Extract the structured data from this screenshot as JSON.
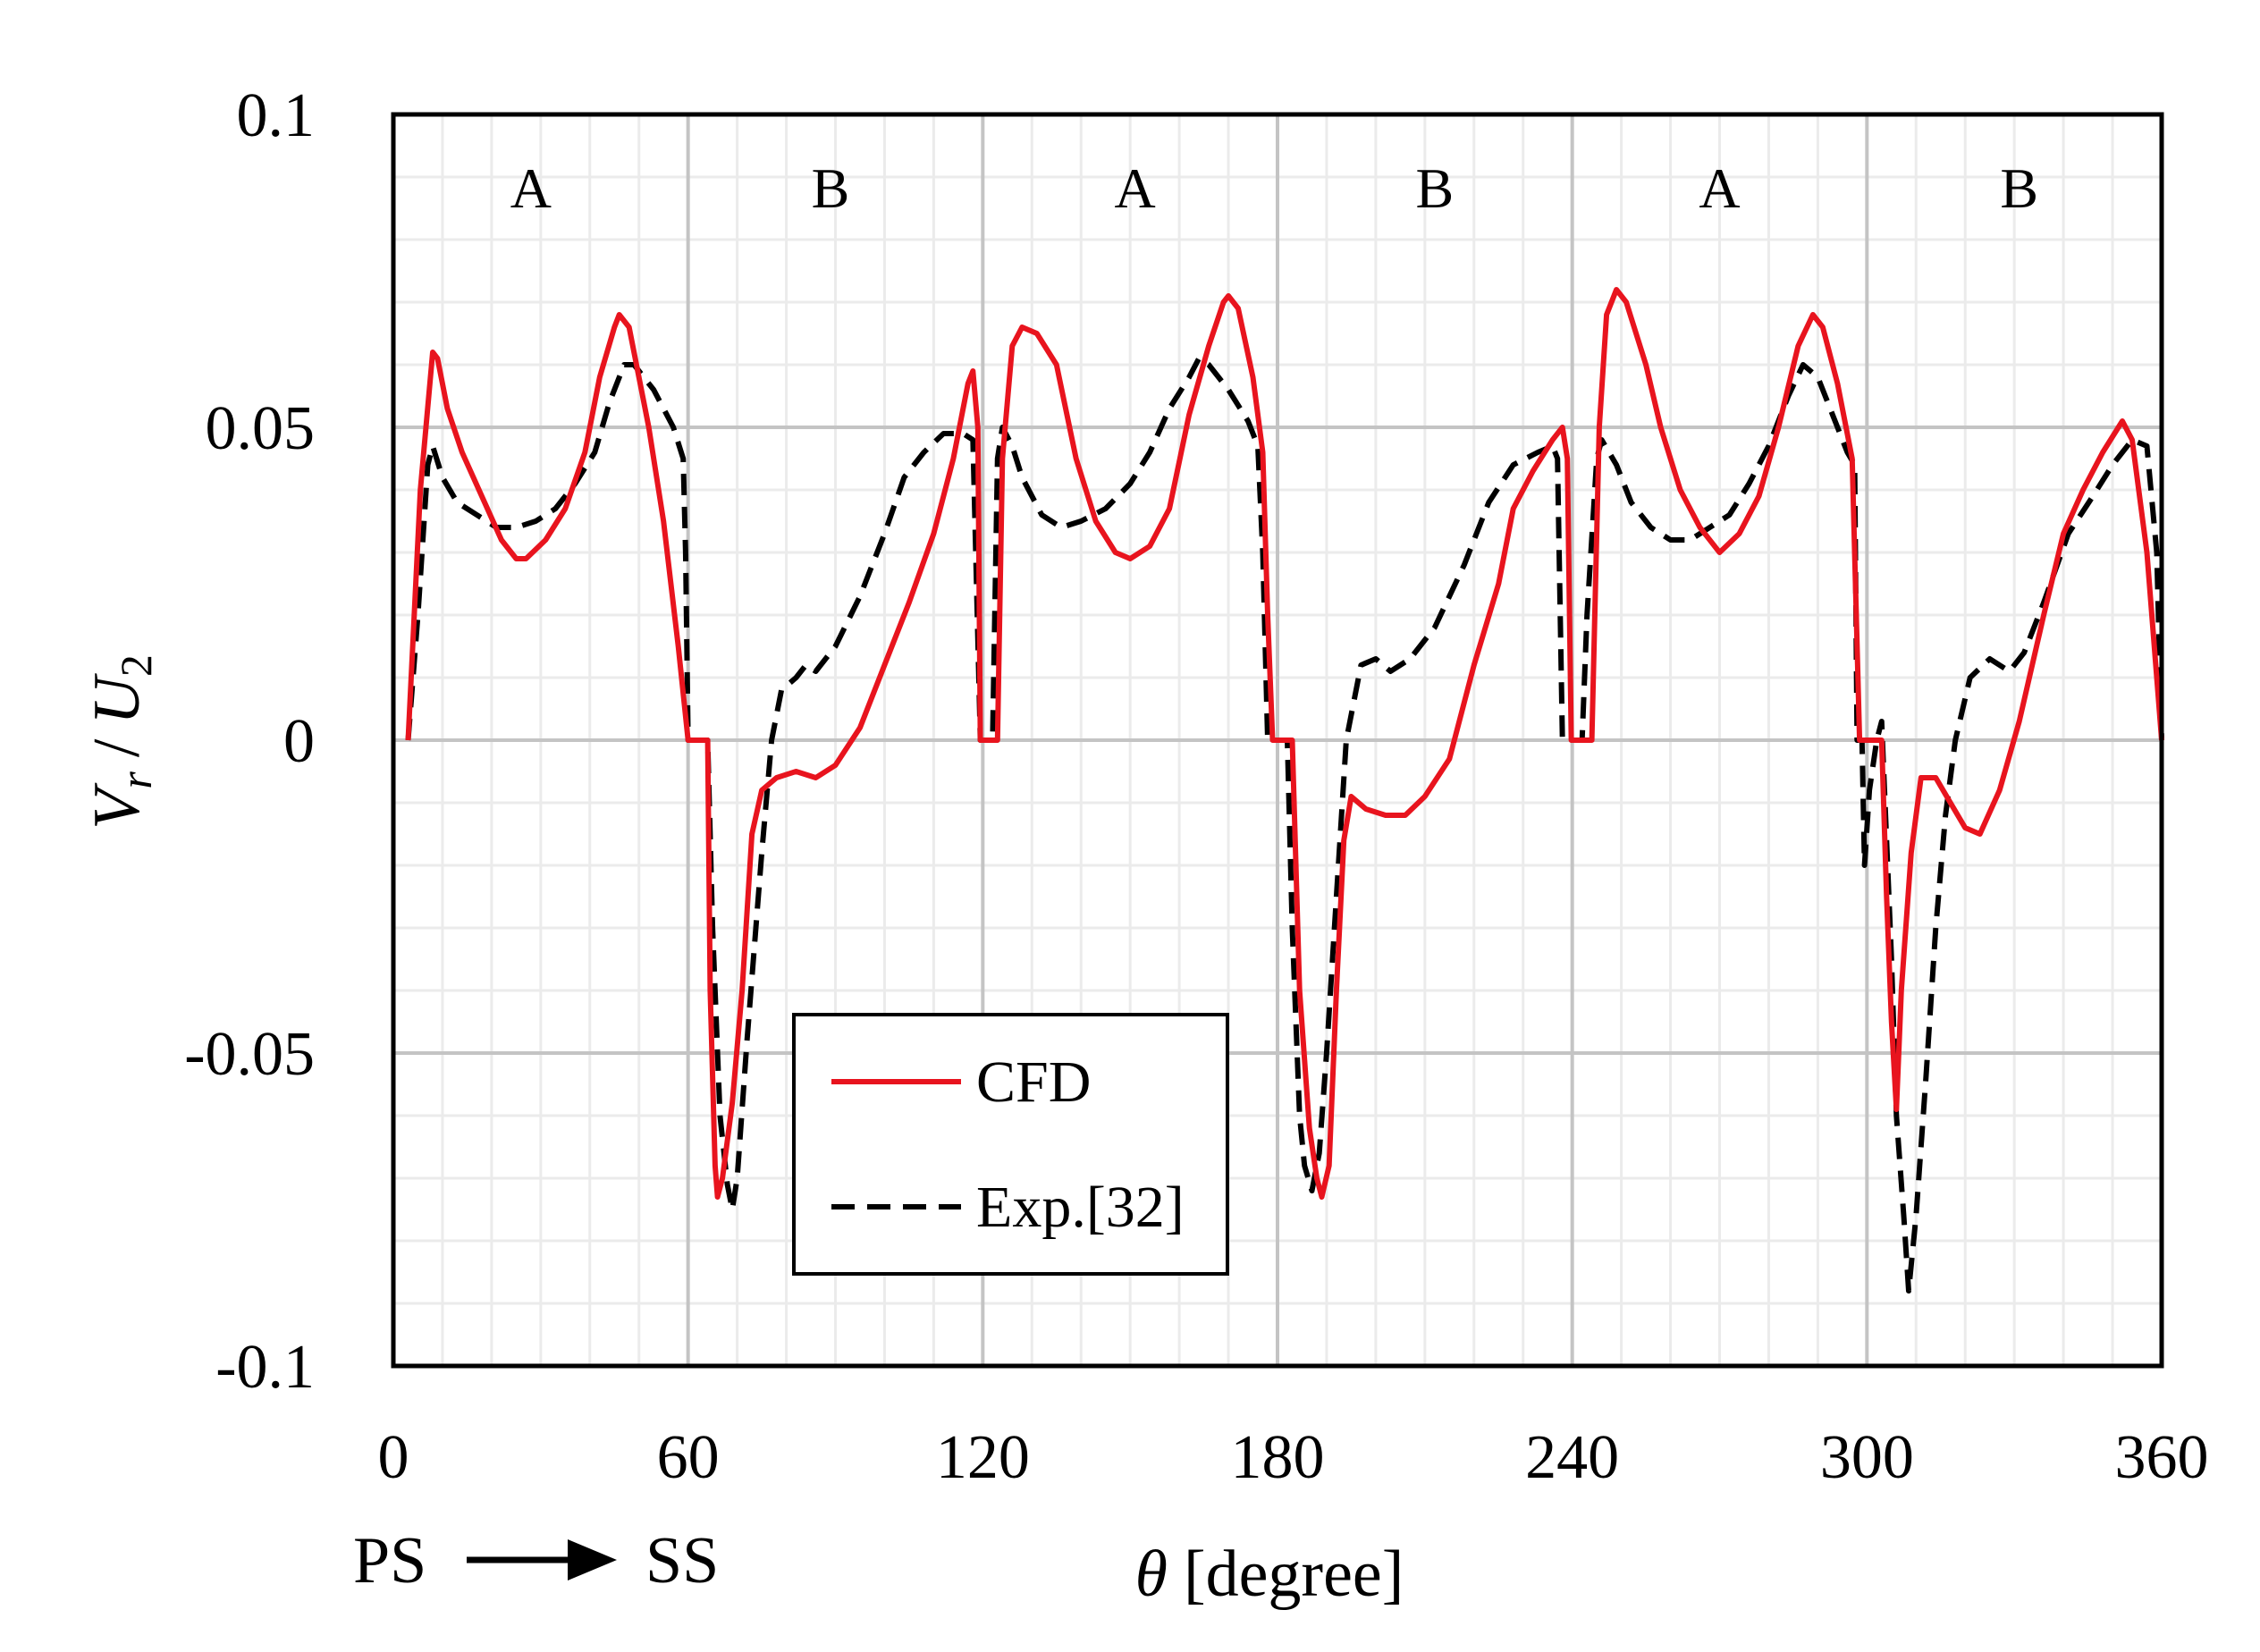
{
  "chart_data": {
    "type": "line",
    "title": "",
    "xlabel_symbol": "θ",
    "xlabel_unit": "[degree]",
    "ylabel_main": "V",
    "ylabel_main_sub": "r",
    "ylabel_sep": "/",
    "ylabel_den": "U",
    "ylabel_den_sub": "2",
    "xlim": [
      0,
      360
    ],
    "ylim": [
      -0.1,
      0.1
    ],
    "xticks": [
      0,
      60,
      120,
      180,
      240,
      300,
      360
    ],
    "xtick_labels": [
      "0",
      "60",
      "120",
      "180",
      "240",
      "300",
      "360"
    ],
    "yticks": [
      0.1,
      0.05,
      0,
      -0.05,
      -0.1
    ],
    "ytick_labels": [
      "0.1",
      "0.05",
      "0",
      "-0.05",
      "-0.1"
    ],
    "minor_x_step": 10,
    "minor_y_step": 0.01,
    "grid": true,
    "regions": [
      {
        "label": "A",
        "x": 28
      },
      {
        "label": "B",
        "x": 89
      },
      {
        "label": "A",
        "x": 151
      },
      {
        "label": "B",
        "x": 212
      },
      {
        "label": "A",
        "x": 270
      },
      {
        "label": "B",
        "x": 331
      }
    ],
    "direction": {
      "from": "PS",
      "to": "SS"
    },
    "legend": {
      "position": "lower-center",
      "entries": [
        "CFD",
        "Exp.[32]"
      ]
    },
    "series": [
      {
        "name": "CFD",
        "color": "#e8141e",
        "style": "solid",
        "points": [
          [
            3,
            0
          ],
          [
            5.5,
            0.04
          ],
          [
            8,
            0.062
          ],
          [
            9,
            0.061
          ],
          [
            11,
            0.053
          ],
          [
            14,
            0.046
          ],
          [
            18,
            0.039
          ],
          [
            22,
            0.032
          ],
          [
            25,
            0.029
          ],
          [
            27,
            0.029
          ],
          [
            31,
            0.032
          ],
          [
            35,
            0.037
          ],
          [
            39,
            0.046
          ],
          [
            42,
            0.058
          ],
          [
            45,
            0.066
          ],
          [
            46,
            0.068
          ],
          [
            48,
            0.066
          ],
          [
            52,
            0.05
          ],
          [
            55,
            0.035
          ],
          [
            58,
            0.015
          ],
          [
            60,
            0
          ],
          [
            64,
            0
          ],
          [
            64.5,
            -0.04
          ],
          [
            65.5,
            -0.068
          ],
          [
            66,
            -0.073
          ],
          [
            67,
            -0.07
          ],
          [
            69,
            -0.058
          ],
          [
            71,
            -0.04
          ],
          [
            73,
            -0.015
          ],
          [
            75,
            -0.008
          ],
          [
            78,
            -0.006
          ],
          [
            82,
            -0.005
          ],
          [
            86,
            -0.006
          ],
          [
            90,
            -0.004
          ],
          [
            95,
            0.002
          ],
          [
            100,
            0.012
          ],
          [
            105,
            0.022
          ],
          [
            110,
            0.033
          ],
          [
            114,
            0.045
          ],
          [
            117,
            0.057
          ],
          [
            118,
            0.059
          ],
          [
            119,
            0.05
          ],
          [
            119.5,
            0
          ],
          [
            123,
            0
          ],
          [
            124,
            0.045
          ],
          [
            126,
            0.063
          ],
          [
            128,
            0.066
          ],
          [
            131,
            0.065
          ],
          [
            135,
            0.06
          ],
          [
            139,
            0.045
          ],
          [
            143,
            0.035
          ],
          [
            147,
            0.03
          ],
          [
            150,
            0.029
          ],
          [
            154,
            0.031
          ],
          [
            158,
            0.037
          ],
          [
            162,
            0.052
          ],
          [
            166,
            0.063
          ],
          [
            169,
            0.07
          ],
          [
            170,
            0.071
          ],
          [
            172,
            0.069
          ],
          [
            175,
            0.058
          ],
          [
            177,
            0.046
          ],
          [
            178,
            0.02
          ],
          [
            179,
            0
          ],
          [
            183,
            0
          ],
          [
            184.5,
            -0.04
          ],
          [
            186.5,
            -0.062
          ],
          [
            188,
            -0.07
          ],
          [
            189,
            -0.073
          ],
          [
            190.5,
            -0.068
          ],
          [
            192,
            -0.04
          ],
          [
            193.5,
            -0.016
          ],
          [
            195,
            -0.009
          ],
          [
            198,
            -0.011
          ],
          [
            202,
            -0.012
          ],
          [
            206,
            -0.012
          ],
          [
            210,
            -0.009
          ],
          [
            215,
            -0.003
          ],
          [
            220,
            0.012
          ],
          [
            225,
            0.025
          ],
          [
            228,
            0.037
          ],
          [
            232,
            0.043
          ],
          [
            236,
            0.048
          ],
          [
            238,
            0.05
          ],
          [
            239,
            0.045
          ],
          [
            239.8,
            0
          ],
          [
            244,
            0
          ],
          [
            245.5,
            0.05
          ],
          [
            247,
            0.068
          ],
          [
            249,
            0.072
          ],
          [
            251,
            0.07
          ],
          [
            255,
            0.06
          ],
          [
            258,
            0.05
          ],
          [
            262,
            0.04
          ],
          [
            266,
            0.034
          ],
          [
            270,
            0.03
          ],
          [
            274,
            0.033
          ],
          [
            278,
            0.039
          ],
          [
            282,
            0.05
          ],
          [
            286,
            0.063
          ],
          [
            289,
            0.068
          ],
          [
            291,
            0.066
          ],
          [
            294,
            0.057
          ],
          [
            297,
            0.045
          ],
          [
            298.5,
            0
          ],
          [
            303,
            0
          ],
          [
            304,
            -0.025
          ],
          [
            305,
            -0.045
          ],
          [
            306,
            -0.059
          ],
          [
            307,
            -0.04
          ],
          [
            309,
            -0.018
          ],
          [
            311,
            -0.006
          ],
          [
            314,
            -0.006
          ],
          [
            317,
            -0.01
          ],
          [
            320,
            -0.014
          ],
          [
            323,
            -0.015
          ],
          [
            327,
            -0.008
          ],
          [
            331,
            0.003
          ],
          [
            336,
            0.02
          ],
          [
            340,
            0.033
          ],
          [
            344,
            0.04
          ],
          [
            348,
            0.046
          ],
          [
            352,
            0.051
          ],
          [
            354,
            0.048
          ],
          [
            357,
            0.03
          ],
          [
            360,
            0
          ]
        ]
      },
      {
        "name": "Exp.[32]",
        "color": "#000000",
        "style": "dashed",
        "points": [
          [
            3,
            0
          ],
          [
            5,
            0.02
          ],
          [
            7,
            0.044
          ],
          [
            8,
            0.047
          ],
          [
            10,
            0.042
          ],
          [
            13,
            0.038
          ],
          [
            17,
            0.036
          ],
          [
            21,
            0.034
          ],
          [
            25,
            0.034
          ],
          [
            29,
            0.035
          ],
          [
            33,
            0.037
          ],
          [
            37,
            0.041
          ],
          [
            41,
            0.046
          ],
          [
            44,
            0.054
          ],
          [
            47,
            0.06
          ],
          [
            49,
            0.06
          ],
          [
            53,
            0.056
          ],
          [
            57,
            0.05
          ],
          [
            59,
            0.045
          ],
          [
            59.5,
            0.03
          ],
          [
            60,
            0
          ],
          [
            64,
            0
          ],
          [
            65,
            -0.03
          ],
          [
            66.5,
            -0.06
          ],
          [
            68,
            -0.071
          ],
          [
            69,
            -0.075
          ],
          [
            70,
            -0.07
          ],
          [
            72,
            -0.048
          ],
          [
            75,
            -0.018
          ],
          [
            77,
            0
          ],
          [
            79,
            0.008
          ],
          [
            82,
            0.01
          ],
          [
            84,
            0.012
          ],
          [
            86,
            0.011
          ],
          [
            90,
            0.015
          ],
          [
            95,
            0.023
          ],
          [
            100,
            0.033
          ],
          [
            104,
            0.042
          ],
          [
            108,
            0.046
          ],
          [
            112,
            0.049
          ],
          [
            116,
            0.049
          ],
          [
            118,
            0.048
          ],
          [
            119.5,
            0
          ],
          [
            122,
            0
          ],
          [
            123,
            0.045
          ],
          [
            124,
            0.05
          ],
          [
            126,
            0.047
          ],
          [
            128,
            0.042
          ],
          [
            132,
            0.036
          ],
          [
            136,
            0.034
          ],
          [
            140,
            0.035
          ],
          [
            145,
            0.037
          ],
          [
            150,
            0.041
          ],
          [
            154,
            0.046
          ],
          [
            158,
            0.053
          ],
          [
            162,
            0.058
          ],
          [
            164,
            0.061
          ],
          [
            166,
            0.06
          ],
          [
            170,
            0.056
          ],
          [
            174,
            0.051
          ],
          [
            176,
            0.047
          ],
          [
            177,
            0.03
          ],
          [
            178,
            0
          ],
          [
            182,
            0
          ],
          [
            183,
            -0.03
          ],
          [
            184.5,
            -0.06
          ],
          [
            185.5,
            -0.068
          ],
          [
            187,
            -0.072
          ],
          [
            188.5,
            -0.066
          ],
          [
            190,
            -0.05
          ],
          [
            192,
            -0.025
          ],
          [
            194,
            0
          ],
          [
            197,
            0.012
          ],
          [
            200,
            0.013
          ],
          [
            203,
            0.011
          ],
          [
            207,
            0.013
          ],
          [
            212,
            0.018
          ],
          [
            218,
            0.028
          ],
          [
            223,
            0.038
          ],
          [
            228,
            0.044
          ],
          [
            233,
            0.046
          ],
          [
            236,
            0.047
          ],
          [
            237,
            0.045
          ],
          [
            238,
            0
          ],
          [
            242,
            0
          ],
          [
            243,
            0.02
          ],
          [
            245,
            0.045
          ],
          [
            246,
            0.048
          ],
          [
            249,
            0.044
          ],
          [
            252,
            0.038
          ],
          [
            256,
            0.034
          ],
          [
            260,
            0.032
          ],
          [
            264,
            0.032
          ],
          [
            268,
            0.034
          ],
          [
            272,
            0.036
          ],
          [
            276,
            0.041
          ],
          [
            280,
            0.047
          ],
          [
            284,
            0.055
          ],
          [
            287,
            0.06
          ],
          [
            290,
            0.058
          ],
          [
            293,
            0.052
          ],
          [
            296,
            0.046
          ],
          [
            297.5,
            0.044
          ],
          [
            298,
            0
          ],
          [
            299,
            0
          ],
          [
            299.5,
            -0.02
          ],
          [
            300.5,
            -0.008
          ],
          [
            302,
            0
          ],
          [
            303,
            0.003
          ],
          [
            305,
            -0.035
          ],
          [
            306,
            -0.06
          ],
          [
            307.5,
            -0.076
          ],
          [
            308.5,
            -0.088
          ],
          [
            310,
            -0.076
          ],
          [
            312,
            -0.054
          ],
          [
            314,
            -0.03
          ],
          [
            316,
            -0.012
          ],
          [
            318,
            0
          ],
          [
            321,
            0.01
          ],
          [
            325,
            0.013
          ],
          [
            329,
            0.011
          ],
          [
            332,
            0.014
          ],
          [
            336,
            0.022
          ],
          [
            341,
            0.033
          ],
          [
            346,
            0.039
          ],
          [
            350,
            0.044
          ],
          [
            354,
            0.048
          ],
          [
            357,
            0.047
          ],
          [
            359,
            0.03
          ],
          [
            360,
            0
          ]
        ]
      }
    ]
  }
}
